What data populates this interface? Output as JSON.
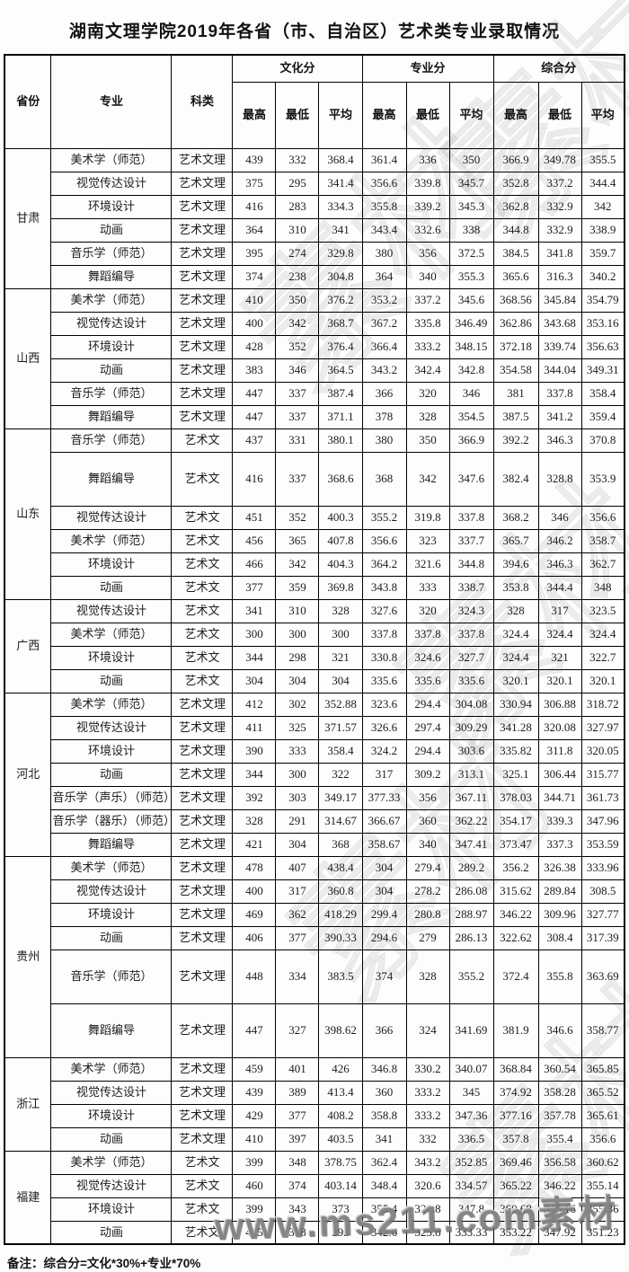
{
  "title": "湖南文理学院2019年各省（市、自治区）艺术类专业录取情况",
  "note": "备注：综合分=文化*30%+专业*70%",
  "watermark": {
    "bottom_text": "www.ms211.com素材",
    "diagonal_text": "素材"
  },
  "table": {
    "headers": {
      "province": "省份",
      "major": "专业",
      "category": "科类",
      "groups": [
        {
          "label": "文化分",
          "cols": [
            "最高",
            "最低",
            "平均"
          ]
        },
        {
          "label": "专业分",
          "cols": [
            "最高",
            "最低",
            "平均"
          ]
        },
        {
          "label": "综合分",
          "cols": [
            "最高",
            "最低",
            "平均"
          ]
        }
      ]
    },
    "provinces": [
      {
        "name": "甘肃",
        "rows": [
          {
            "major": "美术学（师范）",
            "category": "艺术文理",
            "values": [
              "439",
              "332",
              "368.4",
              "361.4",
              "336",
              "350",
              "366.9",
              "349.78",
              "355.5"
            ]
          },
          {
            "major": "视觉传达设计",
            "category": "艺术文理",
            "values": [
              "375",
              "295",
              "341.4",
              "356.6",
              "339.8",
              "345.7",
              "352.8",
              "337.2",
              "344.4"
            ]
          },
          {
            "major": "环境设计",
            "category": "艺术文理",
            "values": [
              "416",
              "283",
              "334.3",
              "355.8",
              "339.2",
              "345.3",
              "362.8",
              "332.9",
              "342"
            ]
          },
          {
            "major": "动画",
            "category": "艺术文理",
            "values": [
              "364",
              "310",
              "341",
              "343.4",
              "332.6",
              "338",
              "344.8",
              "332.9",
              "338.9"
            ]
          },
          {
            "major": "音乐学（师范）",
            "category": "艺术文理",
            "values": [
              "395",
              "274",
              "329.8",
              "380",
              "356",
              "372.5",
              "384.5",
              "341.8",
              "359.7"
            ]
          },
          {
            "major": "舞蹈编导",
            "category": "艺术文理",
            "values": [
              "374",
              "238",
              "304.8",
              "364",
              "340",
              "355.3",
              "365.6",
              "316.3",
              "340.2"
            ]
          }
        ]
      },
      {
        "name": "山西",
        "rows": [
          {
            "major": "美术学（师范）",
            "category": "艺术文理",
            "values": [
              "410",
              "350",
              "376.2",
              "353.2",
              "337.2",
              "345.6",
              "368.56",
              "345.84",
              "354.79"
            ]
          },
          {
            "major": "视觉传达设计",
            "category": "艺术文理",
            "values": [
              "400",
              "342",
              "368.7",
              "367.2",
              "335.8",
              "346.49",
              "362.86",
              "343.68",
              "353.16"
            ]
          },
          {
            "major": "环境设计",
            "category": "艺术文理",
            "values": [
              "428",
              "352",
              "376.4",
              "366.4",
              "333.2",
              "348.15",
              "372.18",
              "339.74",
              "356.63"
            ]
          },
          {
            "major": "动画",
            "category": "艺术文理",
            "values": [
              "383",
              "346",
              "364.5",
              "343.2",
              "342.4",
              "342.8",
              "354.58",
              "344.04",
              "349.31"
            ]
          },
          {
            "major": "音乐学（师范）",
            "category": "艺术文理",
            "values": [
              "447",
              "337",
              "387.4",
              "366",
              "320",
              "346",
              "381",
              "337.8",
              "358.4"
            ]
          },
          {
            "major": "舞蹈编导",
            "category": "艺术文理",
            "values": [
              "447",
              "337",
              "371.1",
              "378",
              "328",
              "354.5",
              "387.5",
              "341.2",
              "359.4"
            ]
          }
        ]
      },
      {
        "name": "山东",
        "rows": [
          {
            "major": "音乐学（师范）",
            "category": "艺术文",
            "values": [
              "437",
              "331",
              "380.1",
              "380",
              "350",
              "366.9",
              "392.2",
              "346.3",
              "370.8"
            ]
          },
          {
            "major": "舞蹈编导",
            "category": "艺术文",
            "tall": true,
            "values": [
              "416",
              "337",
              "368.6",
              "368",
              "342",
              "347.6",
              "382.4",
              "328.8",
              "353.9"
            ]
          },
          {
            "major": "视觉传达设计",
            "category": "艺术文",
            "values": [
              "451",
              "352",
              "400.3",
              "355.2",
              "319.8",
              "337.8",
              "368.2",
              "346",
              "356.6"
            ]
          },
          {
            "major": "美术学（师范）",
            "category": "艺术文",
            "values": [
              "456",
              "365",
              "407.8",
              "356.6",
              "323",
              "337.7",
              "365.7",
              "346.2",
              "358.7"
            ]
          },
          {
            "major": "环境设计",
            "category": "艺术文",
            "values": [
              "466",
              "342",
              "404.3",
              "364.2",
              "321.6",
              "344.8",
              "394.6",
              "346.3",
              "362.7"
            ]
          },
          {
            "major": "动画",
            "category": "艺术文",
            "values": [
              "377",
              "359",
              "369.8",
              "343.8",
              "333",
              "338.7",
              "353.8",
              "344.4",
              "348"
            ]
          }
        ]
      },
      {
        "name": "广西",
        "rows": [
          {
            "major": "视觉传达设计",
            "category": "艺术文",
            "values": [
              "341",
              "310",
              "328",
              "327.6",
              "320",
              "324.3",
              "328",
              "317",
              "323.5"
            ]
          },
          {
            "major": "美术学（师范）",
            "category": "艺术文",
            "values": [
              "300",
              "300",
              "300",
              "337.8",
              "337.8",
              "337.8",
              "324.4",
              "324.4",
              "324.4"
            ]
          },
          {
            "major": "环境设计",
            "category": "艺术文",
            "values": [
              "344",
              "298",
              "321",
              "330.8",
              "324.6",
              "327.7",
              "324.4",
              "321",
              "322.7"
            ]
          },
          {
            "major": "动画",
            "category": "艺术文",
            "values": [
              "304",
              "304",
              "304",
              "335.6",
              "335.6",
              "335.6",
              "320.1",
              "320.1",
              "320.1"
            ]
          }
        ]
      },
      {
        "name": "河北",
        "rows": [
          {
            "major": "美术学（师范）",
            "category": "艺术文理",
            "values": [
              "412",
              "302",
              "352.88",
              "323.6",
              "294.4",
              "304.08",
              "330.94",
              "306.88",
              "318.72"
            ]
          },
          {
            "major": "视觉传达设计",
            "category": "艺术文理",
            "values": [
              "411",
              "325",
              "371.57",
              "326.6",
              "297.4",
              "309.29",
              "341.28",
              "320.08",
              "327.97"
            ]
          },
          {
            "major": "环境设计",
            "category": "艺术文理",
            "values": [
              "390",
              "333",
              "358.4",
              "324.2",
              "294.4",
              "303.6",
              "335.82",
              "311.8",
              "320.05"
            ]
          },
          {
            "major": "动画",
            "category": "艺术文理",
            "values": [
              "344",
              "300",
              "322",
              "317",
              "309.2",
              "313.1",
              "325.1",
              "306.44",
              "315.77"
            ]
          },
          {
            "major": "音乐学（声乐）（师范）",
            "category": "艺术文理",
            "values": [
              "392",
              "303",
              "349.17",
              "377.33",
              "356",
              "367.11",
              "378.03",
              "344.71",
              "361.73"
            ]
          },
          {
            "major": "音乐学（器乐）（师范）",
            "category": "艺术文理",
            "values": [
              "328",
              "291",
              "314.67",
              "366.67",
              "360",
              "362.22",
              "354.17",
              "339.3",
              "347.96"
            ]
          },
          {
            "major": "舞蹈编导",
            "category": "艺术文理",
            "values": [
              "421",
              "304",
              "368",
              "358.67",
              "340",
              "347.41",
              "373.47",
              "337.3",
              "353.59"
            ]
          }
        ]
      },
      {
        "name": "贵州",
        "rows": [
          {
            "major": "美术学（师范）",
            "category": "艺术文理",
            "values": [
              "478",
              "407",
              "438.4",
              "304",
              "279.4",
              "289.2",
              "356.2",
              "326.38",
              "333.96"
            ]
          },
          {
            "major": "视觉传达设计",
            "category": "艺术文理",
            "values": [
              "400",
              "317",
              "360.8",
              "304",
              "278.2",
              "286.08",
              "315.62",
              "289.84",
              "308.5"
            ]
          },
          {
            "major": "环境设计",
            "category": "艺术文理",
            "values": [
              "469",
              "362",
              "418.29",
              "299.4",
              "280.8",
              "288.97",
              "346.22",
              "309.96",
              "327.77"
            ]
          },
          {
            "major": "动画",
            "category": "艺术文理",
            "values": [
              "406",
              "377",
              "390.33",
              "294.6",
              "279",
              "286.13",
              "322.62",
              "308.4",
              "317.39"
            ]
          },
          {
            "major": "音乐学（师范）",
            "category": "艺术文理",
            "tall": true,
            "values": [
              "448",
              "334",
              "383.5",
              "374",
              "328",
              "355.2",
              "372.4",
              "355.8",
              "363.69"
            ]
          },
          {
            "major": "舞蹈编导",
            "category": "艺术文理",
            "tall": true,
            "values": [
              "447",
              "327",
              "398.62",
              "366",
              "324",
              "341.69",
              "381.9",
              "346.6",
              "358.77"
            ]
          }
        ]
      },
      {
        "name": "浙江",
        "rows": [
          {
            "major": "美术学（师范）",
            "category": "艺术文理",
            "values": [
              "459",
              "401",
              "426",
              "346.8",
              "330.2",
              "340.07",
              "368.84",
              "360.54",
              "365.85"
            ]
          },
          {
            "major": "视觉传达设计",
            "category": "艺术文理",
            "values": [
              "439",
              "389",
              "413.4",
              "360",
              "333.2",
              "345",
              "374.92",
              "358.28",
              "365.52"
            ]
          },
          {
            "major": "环境设计",
            "category": "艺术文理",
            "values": [
              "429",
              "377",
              "408.2",
              "358.8",
              "333.2",
              "347.36",
              "377.16",
              "357.78",
              "365.61"
            ]
          },
          {
            "major": "动画",
            "category": "艺术文理",
            "values": [
              "410",
              "397",
              "403.5",
              "341",
              "332",
              "336.5",
              "357.8",
              "355.4",
              "356.6"
            ]
          }
        ]
      },
      {
        "name": "福建",
        "rows": [
          {
            "major": "美术学（师范）",
            "category": "艺术文",
            "values": [
              "399",
              "348",
              "378.75",
              "362.4",
              "343.2",
              "352.85",
              "369.46",
              "356.58",
              "360.62"
            ]
          },
          {
            "major": "视觉传达设计",
            "category": "艺术文",
            "values": [
              "460",
              "374",
              "403.14",
              "348.4",
              "320.6",
              "334.57",
              "365.22",
              "346.22",
              "355.14"
            ]
          },
          {
            "major": "环境设计",
            "category": "艺术文",
            "values": [
              "399",
              "343",
              "373",
              "355.4",
              "326.8",
              "347.8",
              "360.68",
              "345.16",
              "355.36"
            ]
          },
          {
            "major": "动画",
            "category": "艺术文",
            "values": [
              "415",
              "378",
              "393",
              "342.6",
              "325.8",
              "333.33",
              "353.22",
              "347.92",
              "351.23"
            ]
          }
        ]
      }
    ]
  }
}
